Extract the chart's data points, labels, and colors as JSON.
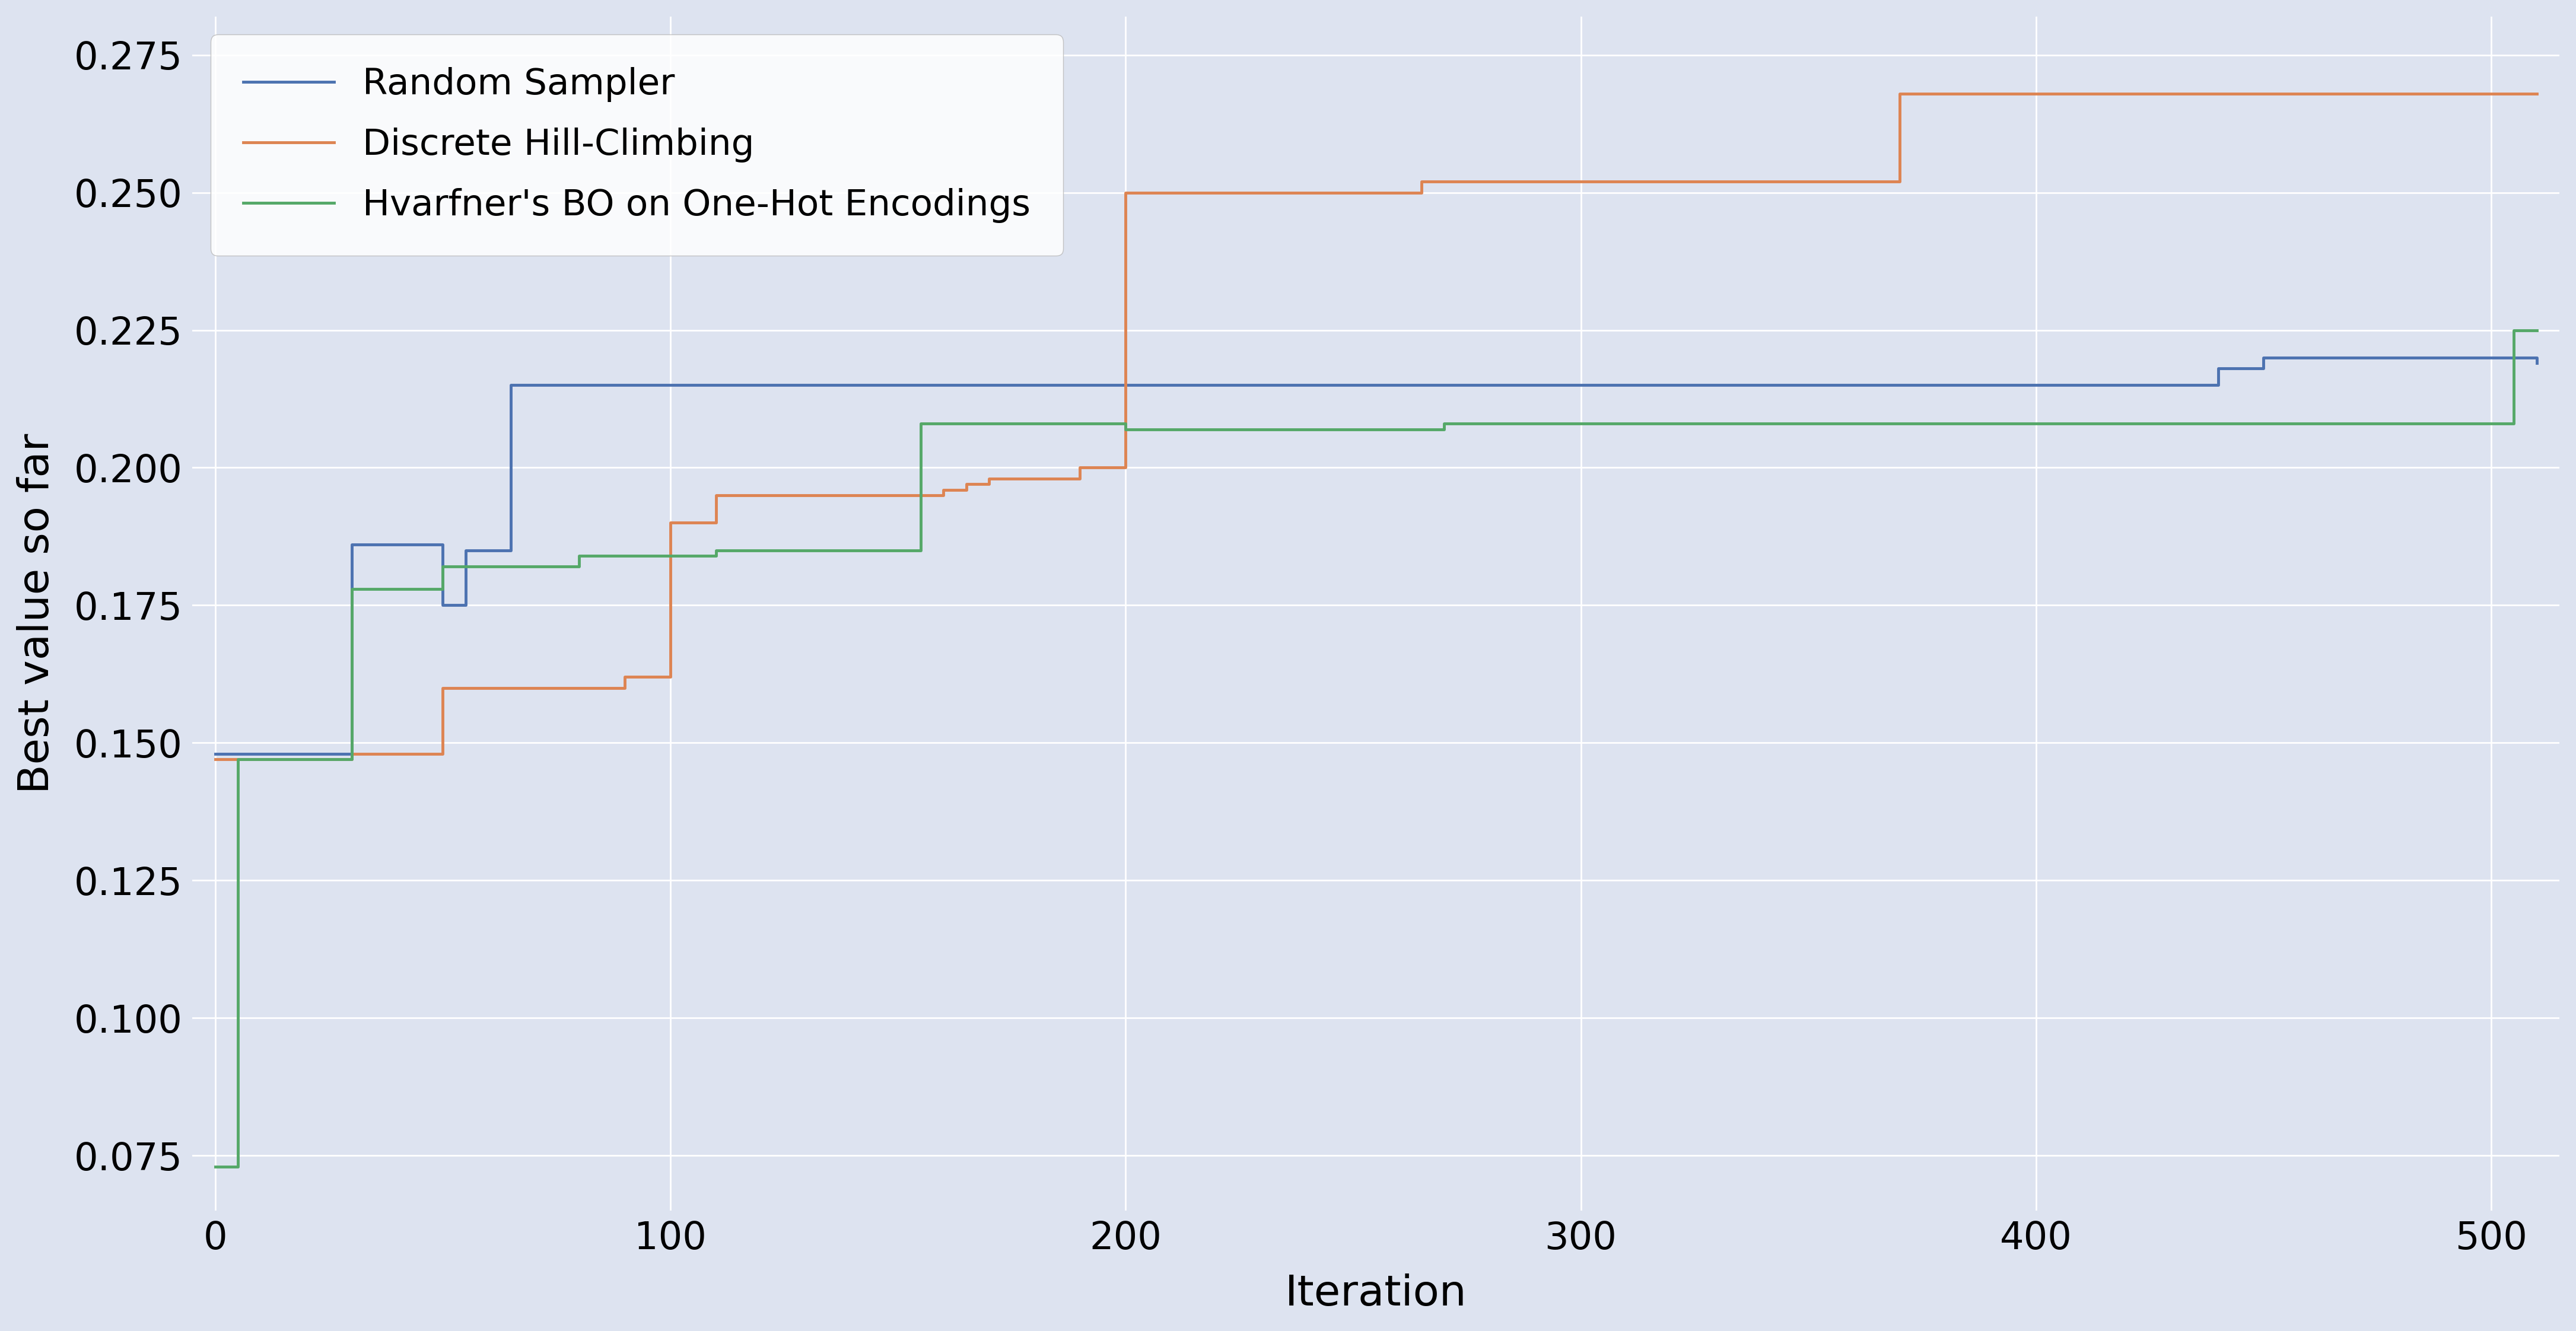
{
  "title": "",
  "xlabel": "Iteration",
  "ylabel": "Best value so far",
  "xlim": [
    -5,
    515
  ],
  "ylim": [
    0.065,
    0.282
  ],
  "yticks": [
    0.075,
    0.1,
    0.125,
    0.15,
    0.175,
    0.2,
    0.225,
    0.25,
    0.275
  ],
  "xticks": [
    0,
    100,
    200,
    300,
    400,
    500
  ],
  "background_color": "#dde3f0",
  "figure_background": "#dde3f0",
  "grid_color": "#ffffff",
  "legend_labels": [
    "Random Sampler",
    "Discrete Hill-Climbing",
    "Hvarfner's BO on One-Hot Encodings"
  ],
  "line_colors": [
    "#4c72b0",
    "#dd8452",
    "#55a868"
  ],
  "line_width": 3.5,
  "random_sampler_x": [
    0,
    30,
    50,
    55,
    65,
    120,
    270,
    440,
    450,
    510
  ],
  "random_sampler_y": [
    0.148,
    0.186,
    0.175,
    0.185,
    0.215,
    0.215,
    0.215,
    0.218,
    0.22,
    0.219
  ],
  "hill_climbing_x": [
    0,
    30,
    50,
    90,
    100,
    110,
    160,
    165,
    170,
    190,
    200,
    265,
    370,
    510
  ],
  "hill_climbing_y": [
    0.147,
    0.148,
    0.16,
    0.162,
    0.19,
    0.195,
    0.196,
    0.197,
    0.198,
    0.2,
    0.25,
    0.252,
    0.268,
    0.268
  ],
  "hvarfner_x": [
    0,
    5,
    30,
    50,
    80,
    110,
    155,
    200,
    270,
    450,
    505,
    510
  ],
  "hvarfner_y": [
    0.073,
    0.147,
    0.178,
    0.182,
    0.184,
    0.185,
    0.208,
    0.207,
    0.208,
    0.208,
    0.225,
    0.225
  ]
}
